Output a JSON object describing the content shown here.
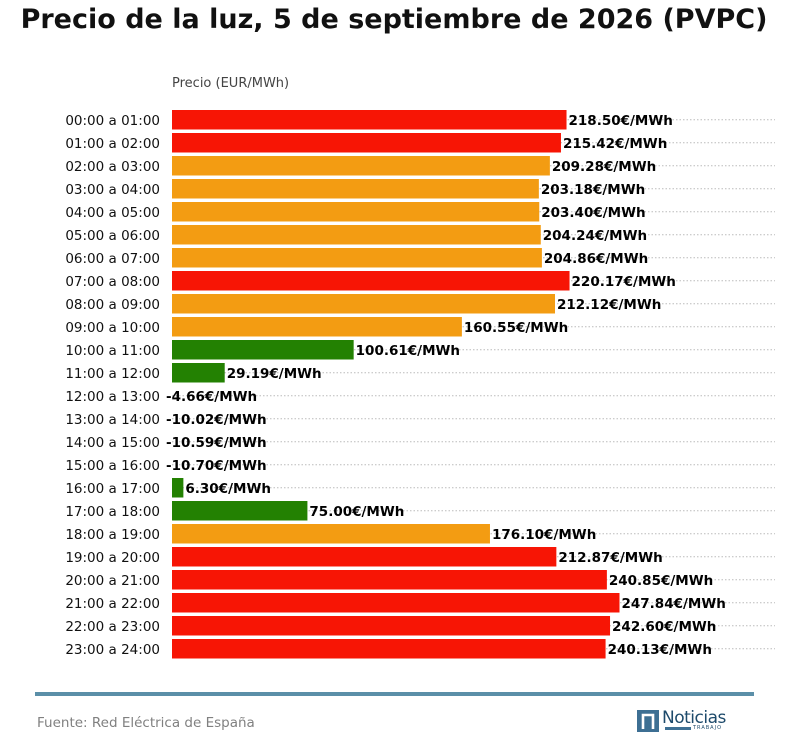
{
  "title": "Precio de la luz, 5 de septiembre de 2026 (PVPC)",
  "source": "Fuente: Red Eléctrica de España",
  "logo": {
    "name": "Noticias",
    "sub": "TRABAJO"
  },
  "colors": {
    "high": "#f71505",
    "mid": "#f39c12",
    "low": "#238102",
    "divider": "#5b8fa8"
  },
  "chart_data": {
    "type": "bar",
    "orientation": "horizontal",
    "xlabel": "Precio (EUR/MWh)",
    "ylabel": "",
    "unit_suffix": "€/MWh",
    "grid": "dotted horizontal",
    "categories": [
      "00:00 a 01:00",
      "01:00 a 02:00",
      "02:00 a 03:00",
      "03:00 a 04:00",
      "04:00 a 05:00",
      "05:00 a 06:00",
      "06:00 a 07:00",
      "07:00 a 08:00",
      "08:00 a 09:00",
      "09:00 a 10:00",
      "10:00 a 11:00",
      "11:00 a 12:00",
      "12:00 a 13:00",
      "13:00 a 14:00",
      "14:00 a 15:00",
      "15:00 a 16:00",
      "16:00 a 17:00",
      "17:00 a 18:00",
      "18:00 a 19:00",
      "19:00 a 20:00",
      "20:00 a 21:00",
      "21:00 a 22:00",
      "22:00 a 23:00",
      "23:00 a 24:00"
    ],
    "values": [
      218.5,
      215.42,
      209.28,
      203.18,
      203.4,
      204.24,
      204.86,
      220.17,
      212.12,
      160.55,
      100.61,
      29.19,
      -4.66,
      -10.02,
      -10.59,
      -10.7,
      6.3,
      75.0,
      176.1,
      212.87,
      240.85,
      247.84,
      242.6,
      240.13
    ],
    "value_labels": [
      "218.50€/MWh",
      "215.42€/MWh",
      "209.28€/MWh",
      "203.18€/MWh",
      "203.40€/MWh",
      "204.24€/MWh",
      "204.86€/MWh",
      "220.17€/MWh",
      "212.12€/MWh",
      "160.55€/MWh",
      "100.61€/MWh",
      "29.19€/MWh",
      "-4.66€/MWh",
      "-10.02€/MWh",
      "-10.59€/MWh",
      "-10.70€/MWh",
      "6.30€/MWh",
      "75.00€/MWh",
      "176.10€/MWh",
      "212.87€/MWh",
      "240.85€/MWh",
      "247.84€/MWh",
      "242.60€/MWh",
      "240.13€/MWh"
    ],
    "bar_colors": [
      "high",
      "high",
      "mid",
      "mid",
      "mid",
      "mid",
      "mid",
      "high",
      "mid",
      "mid",
      "low",
      "low",
      "low",
      "low",
      "low",
      "low",
      "low",
      "low",
      "mid",
      "high",
      "high",
      "high",
      "high",
      "high"
    ]
  }
}
